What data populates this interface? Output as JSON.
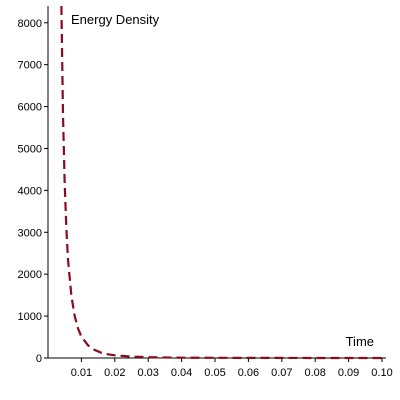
{
  "chart_data": {
    "type": "line",
    "title": "",
    "xlabel": "Time",
    "ylabel": "Energy Density",
    "xlim": [
      0,
      0.1
    ],
    "ylim": [
      0,
      8400
    ],
    "x_ticks": [
      0.01,
      0.02,
      0.03,
      0.04,
      0.05,
      0.06,
      0.07,
      0.08,
      0.09,
      0.1
    ],
    "x_tick_labels": [
      "0.01",
      "0.02",
      "0.03",
      "0.04",
      "0.05",
      "0.06",
      "0.07",
      "0.08",
      "0.09",
      "0.10"
    ],
    "y_ticks": [
      0,
      1000,
      2000,
      3000,
      4000,
      5000,
      6000,
      7000,
      8000
    ],
    "y_tick_labels": [
      "0",
      "1000",
      "2000",
      "3000",
      "4000",
      "5000",
      "6000",
      "7000",
      "8000"
    ],
    "grid": false,
    "line_style": "dashed",
    "line_color": "#8b0a1e",
    "series": [
      {
        "name": "",
        "x": [
          0.004,
          0.0045,
          0.005,
          0.0055,
          0.006,
          0.007,
          0.008,
          0.009,
          0.01,
          0.012,
          0.014,
          0.016,
          0.018,
          0.02,
          0.025,
          0.03,
          0.04,
          0.05,
          0.06,
          0.07,
          0.08,
          0.09,
          0.1
        ],
        "y": [
          8400,
          5800,
          4150,
          3080,
          2350,
          1480,
          1000,
          700,
          510,
          300,
          190,
          125,
          88,
          64,
          33,
          19,
          8,
          4,
          2.4,
          1.5,
          1.0,
          0.7,
          0.5
        ]
      }
    ]
  }
}
